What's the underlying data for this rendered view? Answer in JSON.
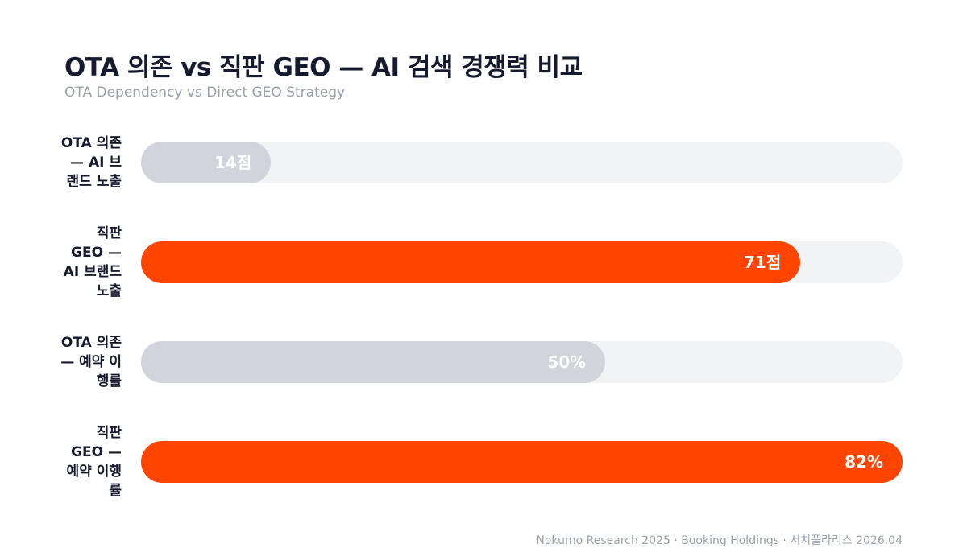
{
  "chart_data": {
    "type": "hbar",
    "title": "OTA 의존 vs 직판 GEO — AI 검색 경쟁력 비교",
    "subtitle": "OTA Dependency vs Direct GEO Strategy",
    "categories": [
      "OTA 의존 — AI 브랜드 노출",
      "직판 GEO — AI 브랜드 노출",
      "OTA 의존 — 예약 이행률",
      "직판 GEO — 예약 이행률"
    ],
    "values": [
      14,
      71,
      50,
      82
    ],
    "value_labels": [
      "14점",
      "71점",
      "50%",
      "82%"
    ],
    "colors": [
      "#d1d5db",
      "#ff4500",
      "#d1d5db",
      "#ff4500"
    ],
    "xlim": [
      0,
      82
    ],
    "source": "Nokumo Research 2025 · Booking Holdings · 서치폴라리스 2026.04"
  }
}
